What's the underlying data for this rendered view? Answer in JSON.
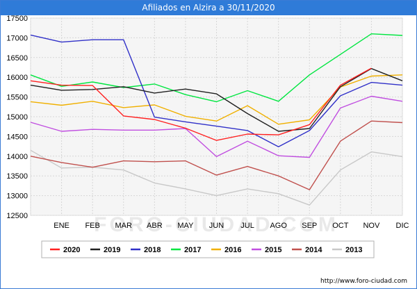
{
  "title": "Afiliados en Alzira a 30/11/2020",
  "footer": "http://www.foro-ciudad.com",
  "watermark": "FORO-CIUDAD.COM",
  "chart_data": {
    "type": "line",
    "title": "Afiliados en Alzira a 30/11/2020",
    "xlabel": "",
    "ylabel": "",
    "categories": [
      "",
      "ENE",
      "FEB",
      "MAR",
      "ABR",
      "MAY",
      "JUN",
      "JUL",
      "AGO",
      "SEP",
      "OCT",
      "NOV",
      "DIC"
    ],
    "ylim": [
      12500,
      17500
    ],
    "yticks": [
      12500,
      13000,
      13500,
      14000,
      14500,
      15000,
      15500,
      16000,
      16500,
      17000,
      17500
    ],
    "grid": true,
    "legend_position": "bottom",
    "series": [
      {
        "name": "2013",
        "color": "#c8c8c8",
        "values": [
          14150,
          13700,
          13720,
          13650,
          13320,
          13170,
          13000,
          13170,
          13050,
          12760,
          13650,
          14110,
          13990
        ]
      },
      {
        "name": "2014",
        "color": "#c0504d",
        "values": [
          14000,
          13840,
          13720,
          13880,
          13860,
          13880,
          13520,
          13740,
          13500,
          13150,
          14380,
          14890,
          14850
        ]
      },
      {
        "name": "2015",
        "color": "#c04ee0",
        "values": [
          14860,
          14630,
          14680,
          14660,
          14660,
          14700,
          13990,
          14380,
          14010,
          13970,
          15220,
          15520,
          15390
        ]
      },
      {
        "name": "2016",
        "color": "#f0b000",
        "values": [
          15380,
          15290,
          15390,
          15230,
          15300,
          15010,
          14890,
          15280,
          14810,
          14920,
          15750,
          16030,
          16060
        ]
      },
      {
        "name": "2017",
        "color": "#00e640",
        "values": [
          16060,
          15770,
          15880,
          15740,
          15830,
          15560,
          15380,
          15660,
          15390,
          16060,
          16580,
          17100,
          17060
        ]
      },
      {
        "name": "2018",
        "color": "#3030c8",
        "values": [
          17070,
          16890,
          16950,
          16950,
          14990,
          14870,
          14760,
          14650,
          14240,
          14650,
          15530,
          15870,
          15800
        ]
      },
      {
        "name": "2019",
        "color": "#202020",
        "values": [
          15800,
          15670,
          15690,
          15760,
          15600,
          15700,
          15580,
          15080,
          14630,
          14700,
          15760,
          16220,
          15910
        ]
      },
      {
        "name": "2020",
        "color": "#ff2020",
        "values": [
          15910,
          15800,
          15790,
          15020,
          14930,
          14710,
          14400,
          14560,
          14540,
          14800,
          15800,
          16230,
          null
        ]
      }
    ],
    "legend_order": [
      "2020",
      "2019",
      "2018",
      "2017",
      "2016",
      "2015",
      "2014",
      "2013"
    ]
  }
}
